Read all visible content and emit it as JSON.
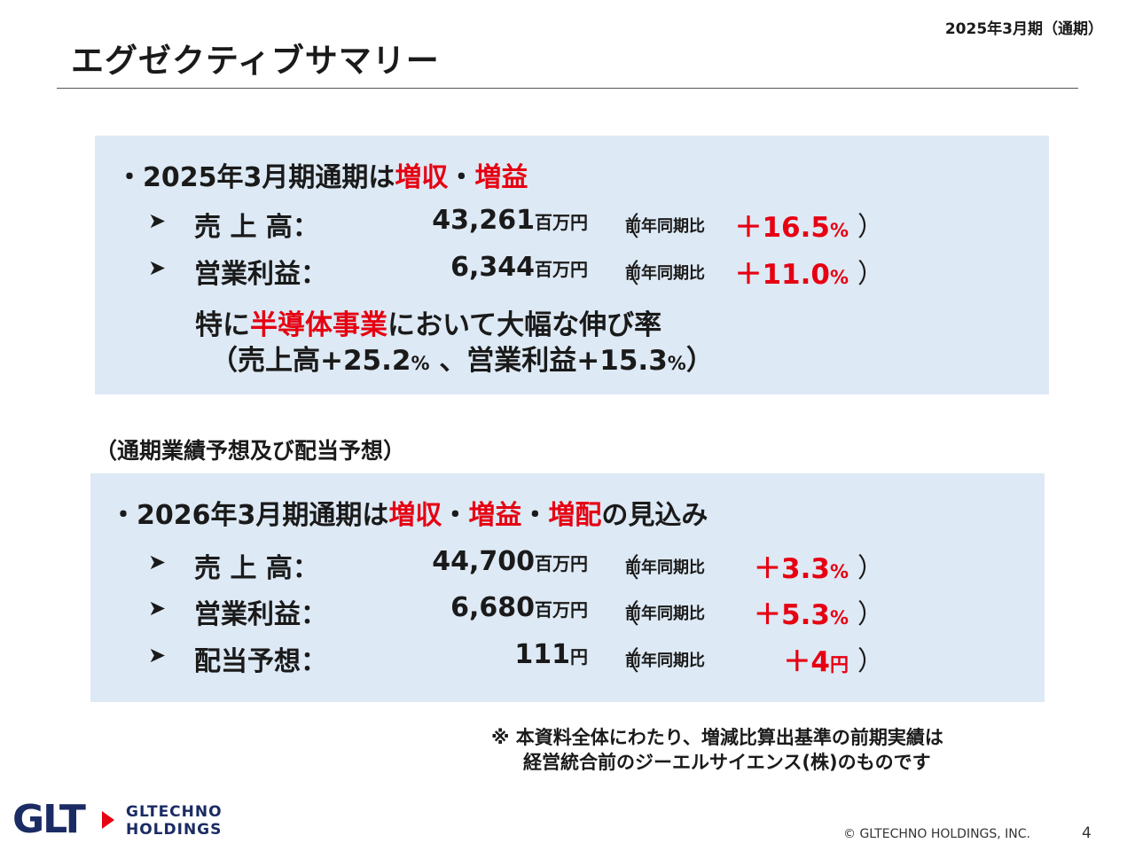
{
  "header": {
    "period": "2025年3月期（通期）",
    "title": "エグゼクティブサマリー"
  },
  "summary_2025": {
    "headline": {
      "prefix": "・2025年3月期通期は",
      "hl1": "増収",
      "sep": "・",
      "hl2": "増益"
    },
    "rows": [
      {
        "label": "売 上 高：",
        "value": "43,261",
        "unit": "百万円",
        "open": "（",
        "cmp_label": "前年同期比",
        "change": "＋16.5",
        "change_unit": "%",
        "close": "）"
      },
      {
        "label": "営業利益：",
        "value": "6,344",
        "unit": "百万円",
        "open": "（",
        "cmp_label": "前年同期比",
        "change": "＋11.0",
        "change_unit": "%",
        "close": "）"
      }
    ],
    "note_line1": {
      "prefix": "特に",
      "highlight": "半導体事業",
      "suffix": "において大幅な伸び率"
    },
    "note_line2": {
      "a": "（売上高+25.2",
      "pct1": "%",
      "b": " 、営業利益+15.3",
      "pct2": "%",
      "c": "）"
    }
  },
  "section_label": "（通期業績予想及び配当予想）",
  "forecast_2026": {
    "headline": {
      "prefix": "・2026年3月期通期は",
      "hl1": "増収",
      "sep1": "・",
      "hl2": "増益",
      "sep2": "・",
      "hl3": "増配",
      "suffix": "の見込み"
    },
    "rows": [
      {
        "label": "売 上 高：",
        "value": "44,700",
        "unit": "百万円",
        "open": "（",
        "cmp_label": "前年同期比",
        "change": "＋3.3",
        "change_unit": "%",
        "close": "）"
      },
      {
        "label": "営業利益：",
        "value": "6,680",
        "unit": "百万円",
        "open": "（",
        "cmp_label": "前年同期比",
        "change": "＋5.3",
        "change_unit": "%",
        "close": "）"
      },
      {
        "label": "配当予想：",
        "value": "111",
        "unit": "円",
        "open": "（",
        "cmp_label": "前年同期比",
        "change": "＋4",
        "change_unit": "円",
        "close": "）"
      }
    ]
  },
  "footnote": {
    "line1": "※ 本資料全体にわたり、増減比算出基準の前期実績は",
    "line2": "経営統合前のジーエルサイエンス(株)のものです"
  },
  "footer": {
    "logo_mark": "GLT",
    "logo_line1": "GLTECHNO",
    "logo_line2": "HOLDINGS",
    "copyright": "© GLTECHNO HOLDINGS, INC.",
    "page_number": "4"
  },
  "colors": {
    "highlight": "#e60012",
    "box_bg": "#dde9f4",
    "brand_navy": "#1b2b63"
  }
}
